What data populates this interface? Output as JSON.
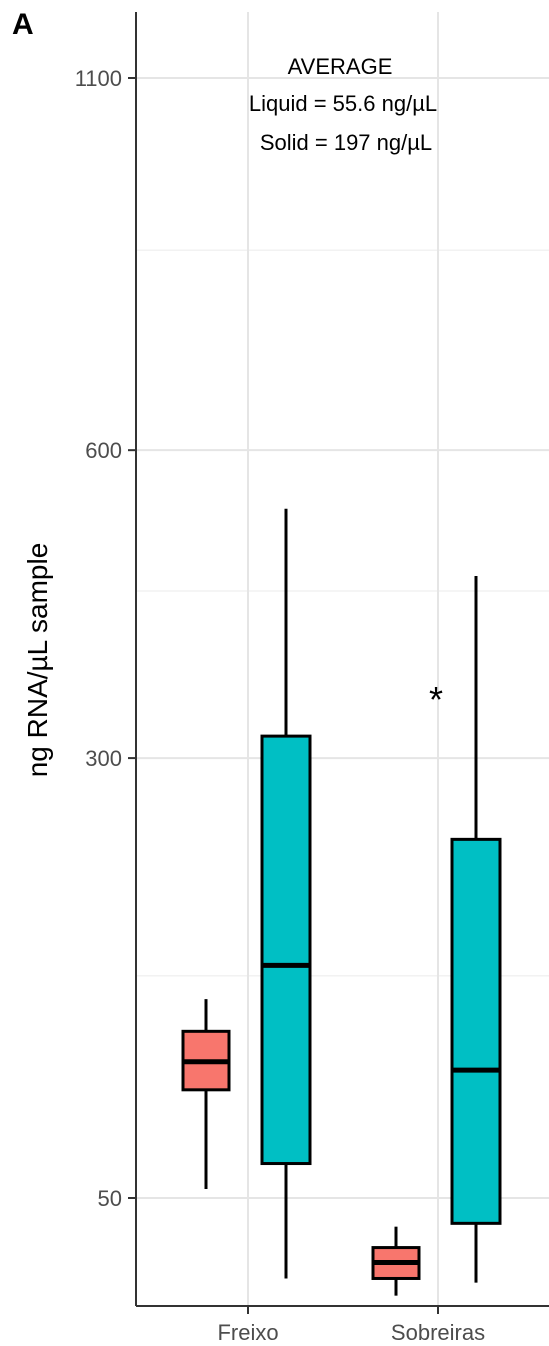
{
  "chart_data": {
    "type": "boxplot",
    "panel_label": "A",
    "ylabel": "ng RNA/µL sample",
    "xlabel": "",
    "y_scale": "sqrt",
    "ylim": [
      0,
      1220
    ],
    "y_ticks": [
      50,
      300,
      600,
      1100
    ],
    "y_minor_ticks": [
      150,
      450,
      850
    ],
    "grid": true,
    "categories": [
      "Freixo",
      "Sobreiras"
    ],
    "series": [
      {
        "color": "#f8766d",
        "boxes": [
          {
            "category": "Freixo",
            "whisker_low": 53,
            "q1": 92,
            "median": 105,
            "q3": 120,
            "whisker_high": 137
          },
          {
            "category": "Sobreiras",
            "whisker_low": 23,
            "q1": 27,
            "median": 31,
            "q3": 35,
            "whisker_high": 41
          }
        ]
      },
      {
        "color": "#00bfc4",
        "boxes": [
          {
            "category": "Freixo",
            "whisker_low": 27,
            "q1": 62,
            "median": 156,
            "q3": 318,
            "whisker_high": 535
          },
          {
            "category": "Sobreiras",
            "whisker_low": 26,
            "q1": 42,
            "median": 101,
            "q3": 238,
            "whisker_high": 465
          }
        ]
      }
    ],
    "annotations": {
      "average_title": "AVERAGE",
      "average_liquid": "Liquid = 55.6 ng/µL",
      "average_solid": "Solid = 197 ng/µL",
      "significance": "*"
    }
  }
}
